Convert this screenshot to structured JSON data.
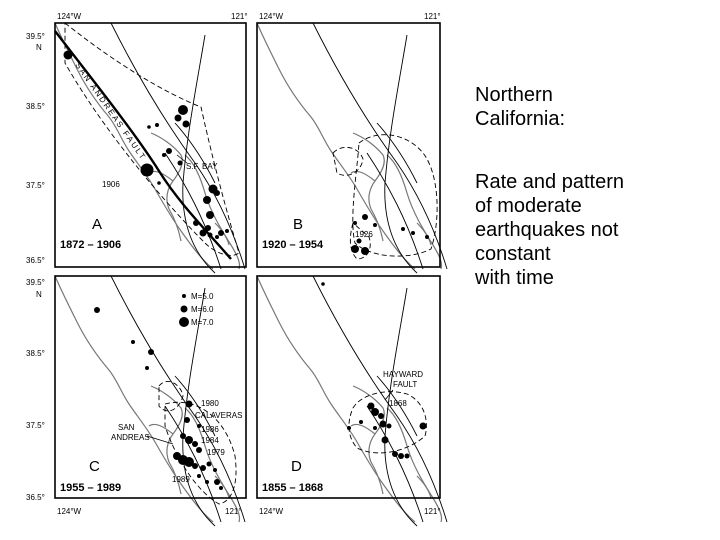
{
  "axes": {
    "lat_top": "39.5°",
    "lat_n": "N",
    "lat_385": "38.5°",
    "lat_375": "37.5°",
    "lat_365": "36.5°",
    "lon_124": "124°W",
    "lon_121": "121°"
  },
  "legend": [
    {
      "label": "M=5.0"
    },
    {
      "label": "M=6.0"
    },
    {
      "label": "M=7.0"
    }
  ],
  "panels": [
    {
      "letter": "A",
      "years": "1872 – 1906",
      "labels": {
        "fault": "SAN ANDREAS FAULT",
        "bay": "S.F. BAY",
        "year": "1906"
      }
    },
    {
      "letter": "B",
      "years": "1920 – 1954",
      "labels": {
        "year": "1926"
      }
    },
    {
      "letter": "C",
      "years": "1955 – 1989",
      "labels": {
        "y1980": "1980",
        "calaveras": "CALAVERAS",
        "y1986": "1986",
        "y1984": "1984",
        "y1979": "1979",
        "y1989": "1989",
        "san": "SAN",
        "andreas": "ANDREAS"
      }
    },
    {
      "letter": "D",
      "years": "1855 – 1868",
      "labels": {
        "hayward": "HAYWARD",
        "fault": "FAULT",
        "year": "1868"
      }
    }
  ],
  "caption": {
    "title": "Northern\nCalifornia:",
    "body": "Rate and pattern\nof moderate\nearthquakes not\nconstant\nwith time"
  }
}
